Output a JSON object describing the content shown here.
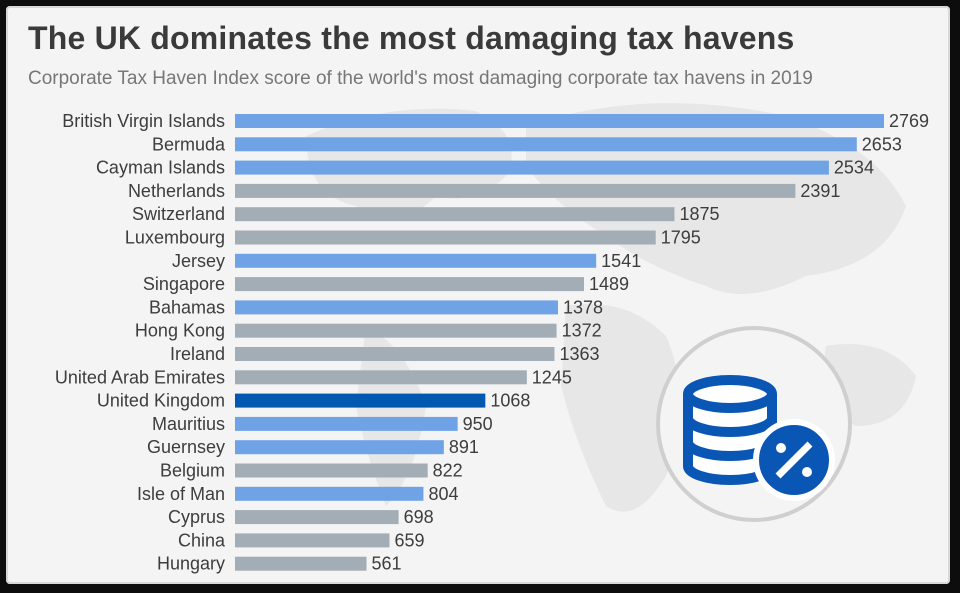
{
  "title": "The UK dominates the most damaging tax havens",
  "subtitle": "Corporate Tax Haven Index score of the world's most damaging corporate tax havens in 2019",
  "icon": "coins-percent-icon",
  "colors": {
    "highlight": "#0058b0",
    "crown_dependency": "#6fa3e6",
    "other": "#a3adb5",
    "label": "#3d3d3d"
  },
  "chart_data": {
    "type": "bar",
    "orientation": "horizontal",
    "title": "The UK dominates the most damaging tax havens",
    "subtitle": "Corporate Tax Haven Index score of the world's most damaging corporate tax havens in 2019",
    "xlabel": "",
    "ylabel": "",
    "xlim": [
      0,
      2769
    ],
    "grid": false,
    "categories": [
      "British Virgin Islands",
      "Bermuda",
      "Cayman Islands",
      "Netherlands",
      "Switzerland",
      "Luxembourg",
      "Jersey",
      "Singapore",
      "Bahamas",
      "Hong Kong",
      "Ireland",
      "United Arab Emirates",
      "United Kingdom",
      "Mauritius",
      "Guernsey",
      "Belgium",
      "Isle of Man",
      "Cyprus",
      "China",
      "Hungary"
    ],
    "values": [
      2769,
      2653,
      2534,
      2391,
      1875,
      1795,
      1541,
      1489,
      1378,
      1372,
      1363,
      1245,
      1068,
      950,
      891,
      822,
      804,
      698,
      659,
      561
    ],
    "bar_colors": [
      "#6fa3e6",
      "#6fa3e6",
      "#6fa3e6",
      "#a3adb5",
      "#a3adb5",
      "#a3adb5",
      "#6fa3e6",
      "#a3adb5",
      "#6fa3e6",
      "#a3adb5",
      "#a3adb5",
      "#a3adb5",
      "#0058b0",
      "#6fa3e6",
      "#6fa3e6",
      "#a3adb5",
      "#6fa3e6",
      "#a3adb5",
      "#a3adb5",
      "#a3adb5"
    ]
  }
}
